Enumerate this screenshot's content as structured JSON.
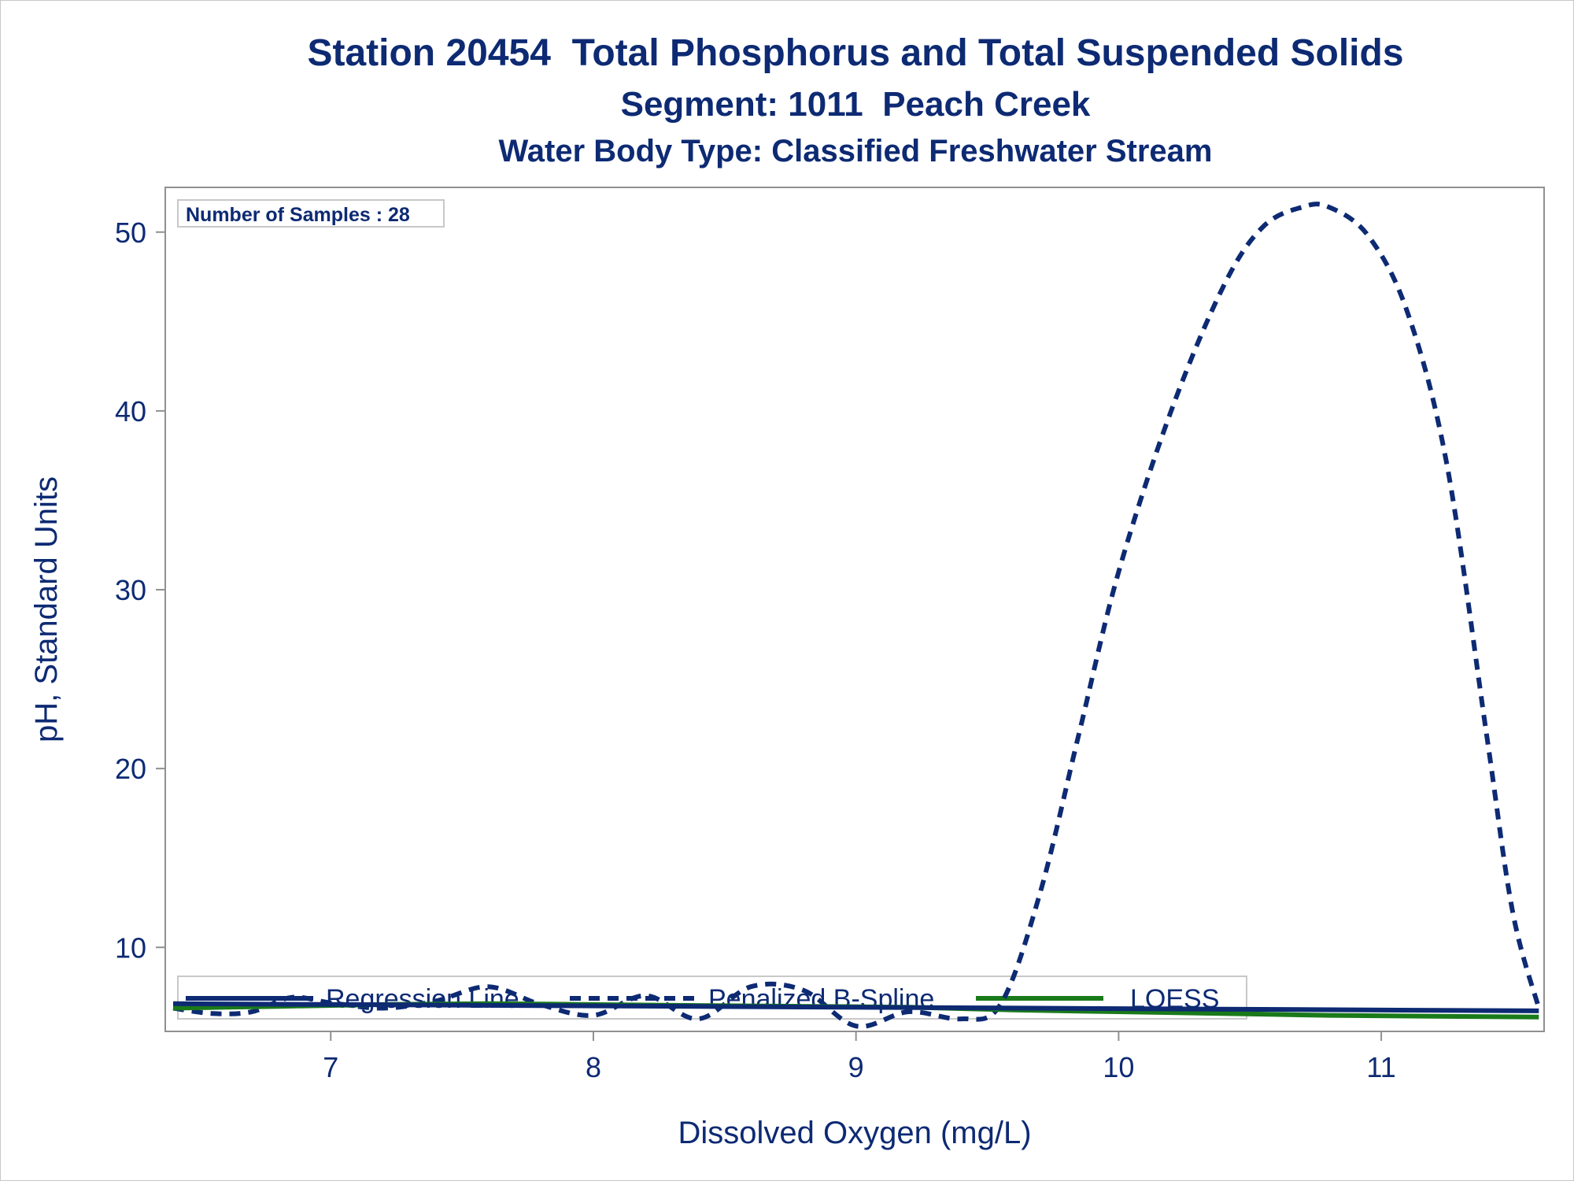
{
  "titles": {
    "line1": "Station 20454  Total Phosphorus and Total Suspended Solids",
    "line2": "Segment: 1011  Peach Creek",
    "line3": "Water Body Type: Classified Freshwater Stream"
  },
  "inset_label": "Number of Samples : 28",
  "colors": {
    "text": "#0d2a73",
    "regression": "#0d2a73",
    "spline": "#0d2a73",
    "loess": "#1a7a1a",
    "axis": "#909090"
  },
  "chart_data": {
    "type": "line",
    "xlabel": "Dissolved Oxygen (mg/L)",
    "ylabel": "pH, Standard Units",
    "xlim": [
      6.37,
      11.62
    ],
    "ylim": [
      5.3,
      52.5
    ],
    "xticks": [
      7,
      8,
      9,
      10,
      11
    ],
    "yticks": [
      10,
      20,
      30,
      40,
      50
    ],
    "grid": false,
    "legend_position": "bottom-inside",
    "series": [
      {
        "name": "Regression Line",
        "style": "solid",
        "x": [
          6.4,
          11.6
        ],
        "y": [
          6.85,
          6.45
        ]
      },
      {
        "name": "Penalized B-Spline",
        "style": "dashed",
        "x": [
          6.4,
          6.55,
          6.7,
          6.85,
          7.0,
          7.2,
          7.4,
          7.6,
          7.8,
          8.0,
          8.2,
          8.4,
          8.6,
          8.8,
          9.0,
          9.2,
          9.4,
          9.55,
          9.7,
          9.85,
          10.0,
          10.2,
          10.4,
          10.55,
          10.7,
          10.8,
          10.95,
          11.1,
          11.25,
          11.4,
          11.5,
          11.6
        ],
        "y": [
          6.6,
          6.3,
          6.4,
          7.2,
          6.9,
          6.6,
          7.0,
          7.8,
          6.8,
          6.2,
          7.3,
          6.0,
          7.8,
          7.6,
          5.6,
          6.4,
          6.0,
          6.8,
          13.0,
          22.0,
          31.0,
          40.0,
          47.0,
          50.3,
          51.4,
          51.4,
          49.8,
          45.5,
          37.0,
          22.0,
          12.0,
          6.6
        ]
      },
      {
        "name": "LOESS",
        "style": "solid",
        "x": [
          6.4,
          6.8,
          7.2,
          7.6,
          8.0,
          8.4,
          8.8,
          9.2,
          9.6,
          10.0,
          10.4,
          10.8,
          11.2,
          11.6
        ],
        "y": [
          6.6,
          6.7,
          6.8,
          6.85,
          6.8,
          6.75,
          6.7,
          6.65,
          6.5,
          6.4,
          6.3,
          6.2,
          6.15,
          6.1
        ]
      }
    ]
  }
}
